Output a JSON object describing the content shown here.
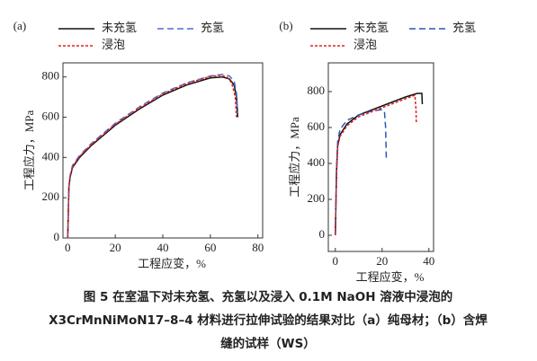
{
  "chart_data": [
    {
      "type": "line",
      "panel_label": "(a)",
      "x_label": "工程应变，%",
      "y_label": "工程应力，MPa",
      "xlim": [
        -2,
        82
      ],
      "ylim": [
        0,
        870
      ],
      "xticks": [
        0,
        20,
        40,
        60,
        80
      ],
      "yticks": [
        0,
        200,
        400,
        600,
        800
      ],
      "series": [
        {
          "name": "未充氢",
          "color": "#111111",
          "dash": "solid",
          "x": [
            0,
            0.5,
            1,
            2,
            5,
            10,
            20,
            30,
            40,
            50,
            60,
            65,
            68,
            70,
            71,
            71.5
          ],
          "values": [
            0,
            250,
            300,
            350,
            400,
            460,
            560,
            640,
            710,
            760,
            795,
            800,
            790,
            760,
            700,
            600
          ]
        },
        {
          "name": "充氢",
          "color": "#4a6fd0",
          "dash": "dashed",
          "x": [
            0,
            0.5,
            1,
            2,
            5,
            10,
            20,
            30,
            40,
            50,
            60,
            65,
            68,
            70,
            71,
            71.5
          ],
          "values": [
            0,
            260,
            310,
            360,
            410,
            470,
            570,
            650,
            720,
            770,
            805,
            812,
            805,
            780,
            720,
            620
          ]
        },
        {
          "name": "浸泡",
          "color": "#e02020",
          "dash": "dotted",
          "x": [
            0,
            0.5,
            1,
            2,
            5,
            10,
            20,
            30,
            40,
            50,
            60,
            64,
            67,
            69,
            70.5,
            71
          ],
          "values": [
            0,
            255,
            305,
            355,
            405,
            465,
            565,
            645,
            715,
            768,
            802,
            808,
            800,
            770,
            700,
            600
          ]
        }
      ]
    },
    {
      "type": "line",
      "panel_label": "(b)",
      "x_label": "工程应变，%",
      "y_label": "工程应力，MPa",
      "xlim": [
        -3,
        42
      ],
      "ylim": [
        -90,
        960
      ],
      "xticks": [
        0,
        20,
        40
      ],
      "yticks": [
        0,
        200,
        400,
        600,
        800
      ],
      "series": [
        {
          "name": "未充氢",
          "color": "#111111",
          "dash": "solid",
          "x": [
            0,
            0.5,
            1,
            2,
            5,
            10,
            20,
            30,
            35,
            37,
            37.2
          ],
          "values": [
            0,
            350,
            500,
            560,
            620,
            670,
            720,
            770,
            790,
            790,
            730
          ]
        },
        {
          "name": "充氢",
          "color": "#2a55b8",
          "dash": "dashed",
          "x": [
            0,
            0.5,
            1,
            2,
            5,
            10,
            15,
            20,
            21,
            21.5,
            21.8
          ],
          "values": [
            0,
            360,
            520,
            590,
            640,
            670,
            690,
            700,
            690,
            600,
            420
          ]
        },
        {
          "name": "浸泡",
          "color": "#e02020",
          "dash": "dotted",
          "x": [
            0,
            0.5,
            1,
            2,
            5,
            10,
            20,
            30,
            34,
            34.5,
            34.6
          ],
          "values": [
            0,
            340,
            490,
            550,
            610,
            660,
            710,
            760,
            780,
            700,
            630
          ]
        }
      ]
    }
  ],
  "caption": [
    "图 5 在室温下对未充氢、充氢以及浸入 0.1M NaOH 溶液中浸泡的",
    "X3CrMnNiMoN17–8–4 材料进行拉伸试验的结果对比（a）纯母材；（b）含焊",
    "缝的试样（WS）"
  ]
}
